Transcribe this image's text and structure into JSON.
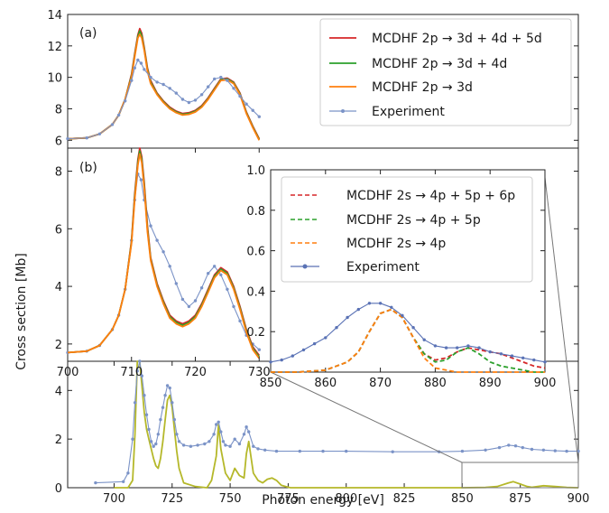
{
  "figure": {
    "ylabel": "Cross section [Mb]",
    "xlabel": "Photon energy [eV]"
  },
  "chart_data": [
    {
      "id": "panel-a",
      "type": "line",
      "label": "(a)",
      "xlim": [
        700,
        780
      ],
      "ylim": [
        5.5,
        14
      ],
      "yticks": [
        6,
        8,
        10,
        12,
        14
      ],
      "grid": false,
      "legend_position": "top-right",
      "series": [
        {
          "name": "MCDHF 2p → 3d + 4d + 5d",
          "color": "#d62728",
          "style": "solid",
          "x": [
            700,
            703,
            705,
            707,
            708,
            709,
            710,
            710.5,
            711,
            711.3,
            711.6,
            712,
            712.5,
            713,
            714,
            715,
            716,
            717,
            718,
            719,
            720,
            721,
            722,
            723,
            724,
            725,
            726,
            727,
            728,
            729,
            730
          ],
          "y": [
            6.1,
            6.15,
            6.4,
            7.0,
            7.6,
            8.6,
            10.2,
            11.5,
            12.7,
            13.1,
            12.8,
            11.9,
            10.6,
            9.8,
            9.0,
            8.5,
            8.1,
            7.85,
            7.7,
            7.75,
            7.9,
            8.2,
            8.7,
            9.3,
            9.9,
            9.95,
            9.7,
            9.0,
            7.8,
            6.9,
            6.1
          ]
        },
        {
          "name": "MCDHF 2p → 3d + 4d",
          "color": "#2ca02c",
          "style": "solid",
          "x": [
            700,
            703,
            705,
            707,
            708,
            709,
            710,
            710.5,
            711,
            711.3,
            711.6,
            712,
            712.5,
            713,
            714,
            715,
            716,
            717,
            718,
            719,
            720,
            721,
            722,
            723,
            724,
            725,
            726,
            727,
            728,
            729,
            730
          ],
          "y": [
            6.1,
            6.15,
            6.4,
            7.0,
            7.6,
            8.6,
            10.1,
            11.4,
            12.6,
            12.95,
            12.65,
            11.8,
            10.5,
            9.7,
            8.95,
            8.45,
            8.05,
            7.8,
            7.65,
            7.7,
            7.85,
            8.15,
            8.65,
            9.25,
            9.85,
            9.9,
            9.65,
            8.95,
            7.75,
            6.85,
            6.05
          ]
        },
        {
          "name": "MCDHF 2p → 3d",
          "color": "#ff7f0e",
          "style": "solid",
          "x": [
            700,
            703,
            705,
            707,
            708,
            709,
            710,
            710.5,
            711,
            711.3,
            711.6,
            712,
            712.5,
            713,
            714,
            715,
            716,
            717,
            718,
            719,
            720,
            721,
            722,
            723,
            724,
            725,
            726,
            727,
            728,
            729,
            730
          ],
          "y": [
            6.1,
            6.15,
            6.4,
            7.0,
            7.6,
            8.6,
            10.0,
            11.3,
            12.5,
            12.75,
            12.5,
            11.7,
            10.4,
            9.6,
            8.9,
            8.4,
            8.0,
            7.75,
            7.6,
            7.65,
            7.8,
            8.1,
            8.6,
            9.2,
            9.8,
            9.85,
            9.6,
            8.9,
            7.7,
            6.8,
            6.0
          ]
        },
        {
          "name": "Experiment",
          "color": "#7b93c7",
          "style": "dot-line",
          "x": [
            700,
            703,
            705,
            707,
            708,
            709,
            710,
            710.5,
            711,
            711.5,
            712,
            713,
            714,
            715,
            716,
            717,
            718,
            719,
            720,
            721,
            722,
            723,
            724,
            725,
            726,
            727,
            728,
            729,
            730
          ],
          "y": [
            6.1,
            6.15,
            6.4,
            7.0,
            7.6,
            8.5,
            9.8,
            10.6,
            11.1,
            10.9,
            10.5,
            10.0,
            9.7,
            9.55,
            9.3,
            9.0,
            8.6,
            8.4,
            8.55,
            8.9,
            9.4,
            9.9,
            10.0,
            9.8,
            9.3,
            8.8,
            8.3,
            7.9,
            7.5
          ]
        }
      ]
    },
    {
      "id": "panel-b",
      "type": "line",
      "label": "(b)",
      "xlim": [
        700,
        780
      ],
      "ylim": [
        1.4,
        8.8
      ],
      "yticks": [
        2,
        4,
        6,
        8
      ],
      "xticks": [
        700,
        710,
        720,
        730
      ],
      "grid": false,
      "series": [
        {
          "name": "Experiment",
          "color": "#7b93c7",
          "style": "dot-line",
          "x": [
            700,
            703,
            705,
            707,
            708,
            709,
            710,
            710.5,
            711,
            711.5,
            712,
            713,
            714,
            715,
            716,
            717,
            718,
            719,
            720,
            721,
            722,
            723,
            724,
            725,
            726,
            727,
            728,
            729,
            730
          ],
          "y": [
            1.7,
            1.75,
            1.95,
            2.5,
            3.0,
            3.9,
            5.6,
            7.0,
            7.9,
            7.7,
            7.0,
            6.1,
            5.6,
            5.2,
            4.7,
            4.1,
            3.55,
            3.3,
            3.5,
            3.95,
            4.45,
            4.7,
            4.4,
            3.9,
            3.3,
            2.8,
            2.3,
            2.0,
            1.8
          ]
        },
        {
          "name": "MCDHF 2p → 3d + 4d + 5d",
          "color": "#d62728",
          "style": "solid",
          "x": [
            700,
            703,
            705,
            707,
            708,
            709,
            710,
            710.5,
            711,
            711.3,
            711.6,
            712,
            712.5,
            713,
            714,
            715,
            716,
            717,
            718,
            719,
            720,
            721,
            722,
            723,
            724,
            725,
            726,
            727,
            728,
            729,
            730
          ],
          "y": [
            1.7,
            1.75,
            1.95,
            2.5,
            3.0,
            3.9,
            5.6,
            7.2,
            8.4,
            8.8,
            8.5,
            7.6,
            6.1,
            5.0,
            4.1,
            3.5,
            3.0,
            2.8,
            2.7,
            2.8,
            3.0,
            3.4,
            3.9,
            4.4,
            4.65,
            4.5,
            4.0,
            3.3,
            2.5,
            1.9,
            1.6
          ]
        },
        {
          "name": "MCDHF 2p → 3d + 4d",
          "color": "#2ca02c",
          "style": "solid",
          "x": [
            700,
            703,
            705,
            707,
            708,
            709,
            710,
            710.5,
            711,
            711.3,
            711.6,
            712,
            712.5,
            713,
            714,
            715,
            716,
            717,
            718,
            719,
            720,
            721,
            722,
            723,
            724,
            725,
            726,
            727,
            728,
            729,
            730
          ],
          "y": [
            1.7,
            1.75,
            1.95,
            2.5,
            3.0,
            3.9,
            5.55,
            7.1,
            8.3,
            8.7,
            8.4,
            7.5,
            6.0,
            4.95,
            4.05,
            3.45,
            2.95,
            2.75,
            2.65,
            2.75,
            2.95,
            3.35,
            3.85,
            4.35,
            4.6,
            4.45,
            3.95,
            3.25,
            2.45,
            1.85,
            1.55
          ]
        },
        {
          "name": "MCDHF 2p → 3d",
          "color": "#ff7f0e",
          "style": "solid",
          "x": [
            700,
            703,
            705,
            707,
            708,
            709,
            710,
            710.5,
            711,
            711.3,
            711.6,
            712,
            712.5,
            713,
            714,
            715,
            716,
            717,
            718,
            719,
            720,
            721,
            722,
            723,
            724,
            725,
            726,
            727,
            728,
            729,
            730
          ],
          "y": [
            1.7,
            1.75,
            1.95,
            2.5,
            3.0,
            3.9,
            5.5,
            7.0,
            8.2,
            8.6,
            8.3,
            7.4,
            5.9,
            4.9,
            4.0,
            3.4,
            2.9,
            2.7,
            2.6,
            2.7,
            2.9,
            3.3,
            3.8,
            4.3,
            4.55,
            4.4,
            3.9,
            3.2,
            2.4,
            1.8,
            1.5
          ]
        }
      ]
    },
    {
      "id": "inset",
      "type": "line",
      "xlim": [
        850,
        900
      ],
      "ylim": [
        0,
        1.0
      ],
      "xticks": [
        850,
        860,
        870,
        880,
        890,
        900
      ],
      "yticks": [
        0.2,
        0.4,
        0.6,
        0.8,
        1.0
      ],
      "yticklabels": [
        "0.2",
        "0.4",
        "0.6",
        "0.8",
        "1.0"
      ],
      "xticklabels": [
        "850",
        "860",
        "870",
        "880",
        "890",
        "900"
      ],
      "grid": false,
      "legend_position": "top-left",
      "series": [
        {
          "name": "MCDHF 2s → 4p + 5p + 6p",
          "color": "#d62728",
          "style": "dashed",
          "x": [
            850,
            855,
            860,
            864,
            866,
            868,
            870,
            872,
            874,
            876,
            878,
            880,
            882,
            884,
            886,
            888,
            890,
            892,
            894,
            896,
            898,
            900
          ],
          "y": [
            0.0,
            0.0,
            0.01,
            0.05,
            0.1,
            0.2,
            0.29,
            0.31,
            0.27,
            0.17,
            0.09,
            0.06,
            0.07,
            0.1,
            0.12,
            0.11,
            0.1,
            0.09,
            0.07,
            0.05,
            0.03,
            0.02
          ]
        },
        {
          "name": "MCDHF 2s → 4p + 5p",
          "color": "#2ca02c",
          "style": "dashed",
          "x": [
            850,
            855,
            860,
            864,
            866,
            868,
            870,
            872,
            874,
            876,
            878,
            880,
            882,
            884,
            886,
            888,
            890,
            892,
            894,
            896,
            898,
            900
          ],
          "y": [
            0.0,
            0.0,
            0.01,
            0.05,
            0.1,
            0.2,
            0.29,
            0.31,
            0.27,
            0.17,
            0.09,
            0.05,
            0.06,
            0.1,
            0.12,
            0.09,
            0.05,
            0.03,
            0.02,
            0.01,
            0.0,
            0.0
          ]
        },
        {
          "name": "MCDHF 2s → 4p",
          "color": "#ff7f0e",
          "style": "dashed",
          "x": [
            850,
            855,
            860,
            864,
            866,
            868,
            870,
            872,
            874,
            876,
            878,
            880,
            882,
            884,
            886,
            888,
            890,
            895,
            900
          ],
          "y": [
            0.0,
            0.0,
            0.01,
            0.05,
            0.1,
            0.2,
            0.29,
            0.31,
            0.27,
            0.17,
            0.07,
            0.02,
            0.01,
            0.0,
            0.0,
            0.0,
            0.0,
            0.0,
            0.0
          ]
        },
        {
          "name": "Experiment",
          "color": "#5a72b5",
          "style": "dot-line",
          "x": [
            850,
            852,
            854,
            856,
            858,
            860,
            862,
            864,
            866,
            868,
            870,
            872,
            874,
            876,
            878,
            880,
            882,
            884,
            886,
            888,
            890,
            892,
            894,
            896,
            898,
            900
          ],
          "y": [
            0.05,
            0.06,
            0.08,
            0.11,
            0.14,
            0.17,
            0.22,
            0.27,
            0.31,
            0.34,
            0.34,
            0.32,
            0.28,
            0.22,
            0.16,
            0.13,
            0.12,
            0.12,
            0.13,
            0.12,
            0.1,
            0.09,
            0.08,
            0.07,
            0.06,
            0.05
          ]
        }
      ]
    },
    {
      "id": "panel-c",
      "type": "line",
      "xlim": [
        680,
        900
      ],
      "ylim": [
        0,
        5.2
      ],
      "xticks": [
        700,
        725,
        750,
        775,
        800,
        825,
        850,
        875,
        900
      ],
      "yticks": [
        0,
        2,
        4
      ],
      "grid": false,
      "series": [
        {
          "name": "",
          "color": "#b5b82a",
          "style": "solid",
          "x": [
            700,
            706,
            708,
            709,
            710,
            711,
            712,
            713,
            714,
            715,
            716,
            717,
            718,
            719,
            720,
            721,
            722,
            723,
            724,
            725,
            726,
            727,
            728,
            730,
            735,
            740,
            742,
            744,
            745,
            746,
            748,
            750,
            752,
            754,
            756,
            757,
            758,
            760,
            762,
            764,
            766,
            768,
            770,
            772,
            774,
            776,
            780,
            800,
            850,
            860,
            865,
            870,
            872,
            875,
            878,
            880,
            885,
            890,
            895,
            900
          ],
          "y": [
            0,
            0,
            0.3,
            2.2,
            5.2,
            5.2,
            4.2,
            3.1,
            2.4,
            2.0,
            1.6,
            1.2,
            0.9,
            0.8,
            1.2,
            1.9,
            2.8,
            3.6,
            3.8,
            3.3,
            2.4,
            1.5,
            0.8,
            0.2,
            0.05,
            0.0,
            0.3,
            1.3,
            2.6,
            1.6,
            0.6,
            0.3,
            0.8,
            0.5,
            0.4,
            1.4,
            1.9,
            0.6,
            0.3,
            0.2,
            0.35,
            0.4,
            0.3,
            0.1,
            0.05,
            0.0,
            0.0,
            0.0,
            0.0,
            0.01,
            0.05,
            0.2,
            0.25,
            0.15,
            0.05,
            0.02,
            0.08,
            0.05,
            0.01,
            0.0
          ]
        },
        {
          "name": "Experiment",
          "color": "#7b93c7",
          "style": "dot-line",
          "x": [
            692,
            704,
            706,
            708,
            709,
            710,
            711,
            712,
            713,
            714,
            715,
            716,
            717,
            718,
            719,
            720,
            721,
            722,
            723,
            724,
            725,
            726,
            727,
            728,
            730,
            733,
            736,
            739,
            741,
            743,
            744,
            745,
            746,
            747,
            748,
            750,
            752,
            754,
            756,
            757,
            758,
            760,
            762,
            765,
            770,
            780,
            790,
            800,
            820,
            840,
            850,
            860,
            866,
            870,
            873,
            876,
            880,
            885,
            890,
            895,
            900
          ],
          "y": [
            0.2,
            0.25,
            0.6,
            2.0,
            3.5,
            4.8,
            5.2,
            4.6,
            3.8,
            3.0,
            2.4,
            1.9,
            1.7,
            1.8,
            2.2,
            2.8,
            3.3,
            3.8,
            4.2,
            4.1,
            3.5,
            2.8,
            2.2,
            1.9,
            1.75,
            1.7,
            1.75,
            1.8,
            1.9,
            2.2,
            2.6,
            2.7,
            2.3,
            1.9,
            1.75,
            1.7,
            2.0,
            1.8,
            2.2,
            2.5,
            2.3,
            1.7,
            1.6,
            1.55,
            1.5,
            1.5,
            1.5,
            1.5,
            1.48,
            1.48,
            1.5,
            1.55,
            1.65,
            1.75,
            1.72,
            1.65,
            1.58,
            1.55,
            1.52,
            1.5,
            1.5
          ]
        }
      ]
    }
  ]
}
